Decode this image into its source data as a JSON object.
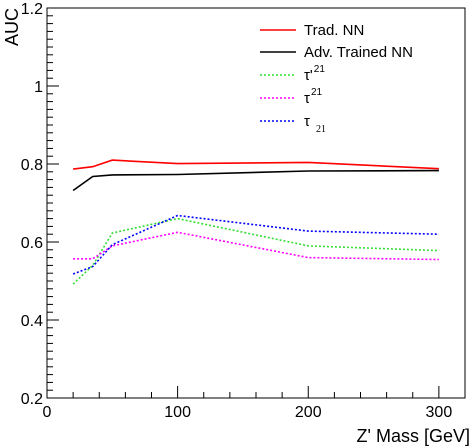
{
  "chart_data": {
    "type": "line",
    "title": "",
    "xlabel": "Z' Mass [GeV]",
    "ylabel": "AUC",
    "xlim": [
      0,
      320
    ],
    "ylim": [
      0.2,
      1.2
    ],
    "x_ticks": [
      0,
      100,
      200,
      300
    ],
    "x_tick_labels": [
      "0",
      "100",
      "200",
      "300"
    ],
    "y_ticks": [
      0.2,
      0.4,
      0.6,
      0.8,
      1.0,
      1.2
    ],
    "y_tick_labels": [
      "0.2",
      "0.4",
      "0.6",
      "0.8",
      "1",
      "1.2"
    ],
    "grid": false,
    "legend_position": "top-right",
    "x": [
      20,
      35,
      50,
      100,
      200,
      300
    ],
    "series": [
      {
        "name": "Trad. NN",
        "legend_base": "Trad. NN",
        "color": "#ff0000",
        "dash": "solid",
        "values": [
          0.787,
          0.793,
          0.81,
          0.801,
          0.804,
          0.788
        ]
      },
      {
        "name": "Adv. Trained NN",
        "legend_base": "Adv. Trained NN",
        "color": "#000000",
        "dash": "solid",
        "values": [
          0.732,
          0.768,
          0.772,
          0.773,
          0.782,
          0.783
        ]
      },
      {
        "name": "τ'21",
        "legend_base": "τ'",
        "legend_sup": "21",
        "color": "#33dd33",
        "dash": "dotted",
        "values": [
          0.492,
          0.54,
          0.623,
          0.66,
          0.59,
          0.578
        ]
      },
      {
        "name": "τ21",
        "legend_base": "τ",
        "legend_sup": "21",
        "color": "#ff00ff",
        "dash": "dotted",
        "values": [
          0.557,
          0.557,
          0.59,
          0.625,
          0.56,
          0.555
        ]
      },
      {
        "name": "τ21",
        "legend_base": "τ",
        "legend_sub": "21",
        "color": "#0000ff",
        "dash": "dotted",
        "values": [
          0.518,
          0.537,
          0.593,
          0.668,
          0.628,
          0.62
        ]
      }
    ]
  }
}
